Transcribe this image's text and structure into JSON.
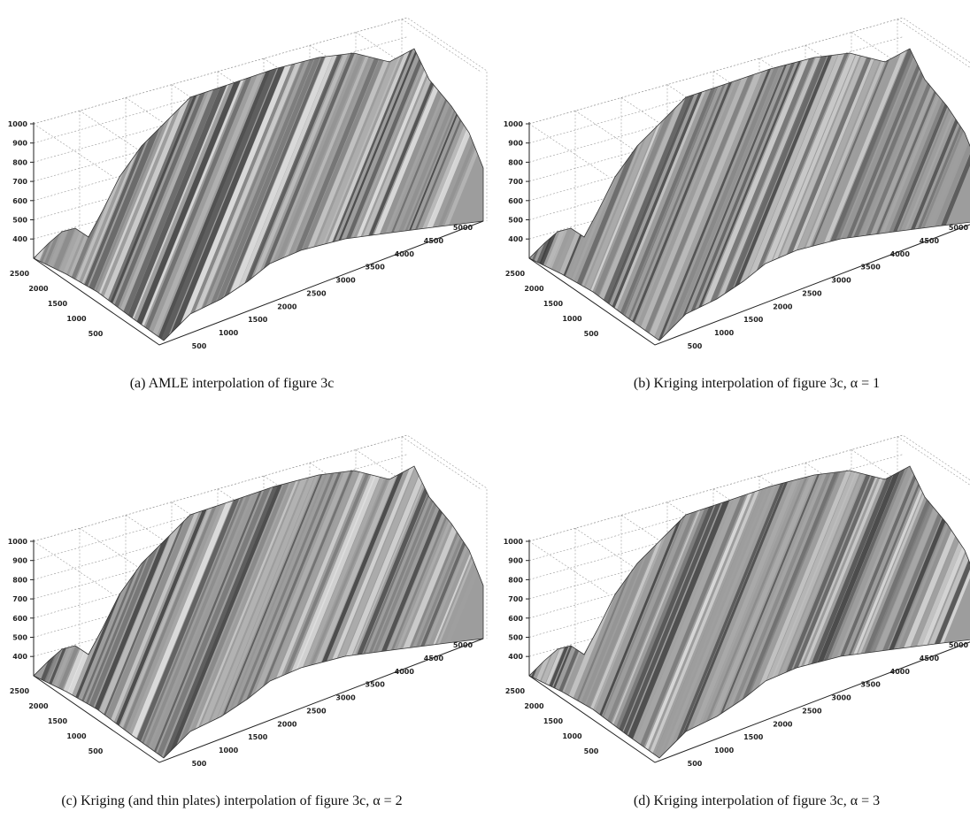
{
  "panels": [
    {
      "caption": "(a) AMLE interpolation of figure 3c",
      "z_ticks": [
        1000,
        900,
        800,
        700,
        600,
        500,
        400
      ],
      "y_ticks": [
        2500,
        2000,
        1500,
        1000,
        500
      ],
      "x_ticks": [
        500,
        1000,
        1500,
        2000,
        2500,
        3000,
        3500,
        4000,
        4500,
        5000
      ]
    },
    {
      "caption": "(b) Kriging interpolation of figure 3c, α = 1",
      "z_ticks": [
        1000,
        900,
        800,
        700,
        600,
        500,
        400
      ],
      "y_ticks": [
        2500,
        2000,
        1500,
        1000,
        500
      ],
      "x_ticks": [
        500,
        1000,
        1500,
        2000,
        2500,
        3000,
        3500,
        4000,
        4500,
        5000
      ]
    },
    {
      "caption": "(c) Kriging (and thin plates) interpolation of figure 3c, α = 2",
      "z_ticks": [
        1000,
        900,
        800,
        700,
        600,
        500,
        400
      ],
      "y_ticks": [
        2500,
        2000,
        1500,
        1000,
        500
      ],
      "x_ticks": [
        500,
        1000,
        1500,
        2000,
        2500,
        3000,
        3500,
        4000,
        4500,
        5000
      ]
    },
    {
      "caption": "(d) Kriging interpolation of figure 3c, α = 3",
      "z_ticks": [
        1000,
        900,
        800,
        700,
        600,
        500,
        400
      ],
      "y_ticks": [
        2500,
        2000,
        1500,
        1000,
        500
      ],
      "x_ticks": [
        500,
        1000,
        1500,
        2000,
        2500,
        3000,
        3500,
        4000,
        4500,
        5000
      ]
    }
  ]
}
